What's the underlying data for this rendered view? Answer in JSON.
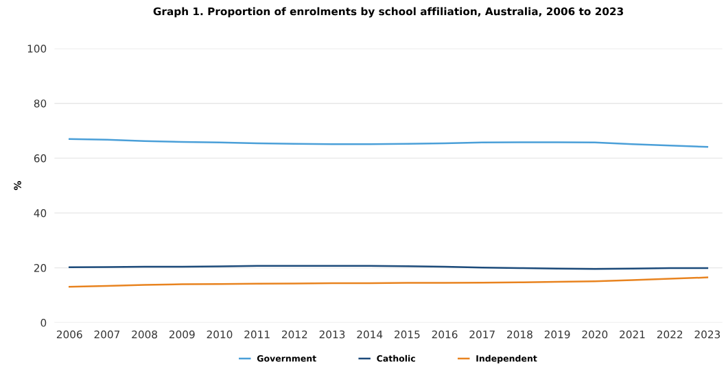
{
  "chart_data": {
    "type": "line",
    "title": "Graph 1. Proportion of enrolments by school affiliation, Australia, 2006 to 2023",
    "ylabel": "%",
    "categories": [
      "2006",
      "2007",
      "2008",
      "2009",
      "2010",
      "2011",
      "2012",
      "2013",
      "2014",
      "2015",
      "2016",
      "2017",
      "2018",
      "2019",
      "2020",
      "2021",
      "2022",
      "2023"
    ],
    "series": [
      {
        "name": "Government",
        "color": "#4a9fd8",
        "values": [
          67.0,
          66.7,
          66.2,
          65.9,
          65.7,
          65.4,
          65.2,
          65.1,
          65.1,
          65.2,
          65.4,
          65.7,
          65.8,
          65.8,
          65.7,
          65.1,
          64.6,
          64.1
        ]
      },
      {
        "name": "Catholic",
        "color": "#1b4a7a",
        "values": [
          20.2,
          20.3,
          20.4,
          20.4,
          20.5,
          20.7,
          20.7,
          20.7,
          20.7,
          20.6,
          20.4,
          20.1,
          19.9,
          19.7,
          19.6,
          19.7,
          19.9,
          19.9
        ]
      },
      {
        "name": "Independent",
        "color": "#e8831f",
        "values": [
          13.1,
          13.4,
          13.8,
          14.0,
          14.1,
          14.2,
          14.3,
          14.4,
          14.4,
          14.5,
          14.5,
          14.6,
          14.7,
          14.9,
          15.1,
          15.5,
          16.0,
          16.5
        ]
      }
    ],
    "ylim": [
      0,
      100
    ],
    "yticks": [
      0,
      20,
      40,
      60,
      80,
      100
    ],
    "grid": "y",
    "legend": "bottom",
    "marker": "none",
    "line_style": "solid"
  }
}
